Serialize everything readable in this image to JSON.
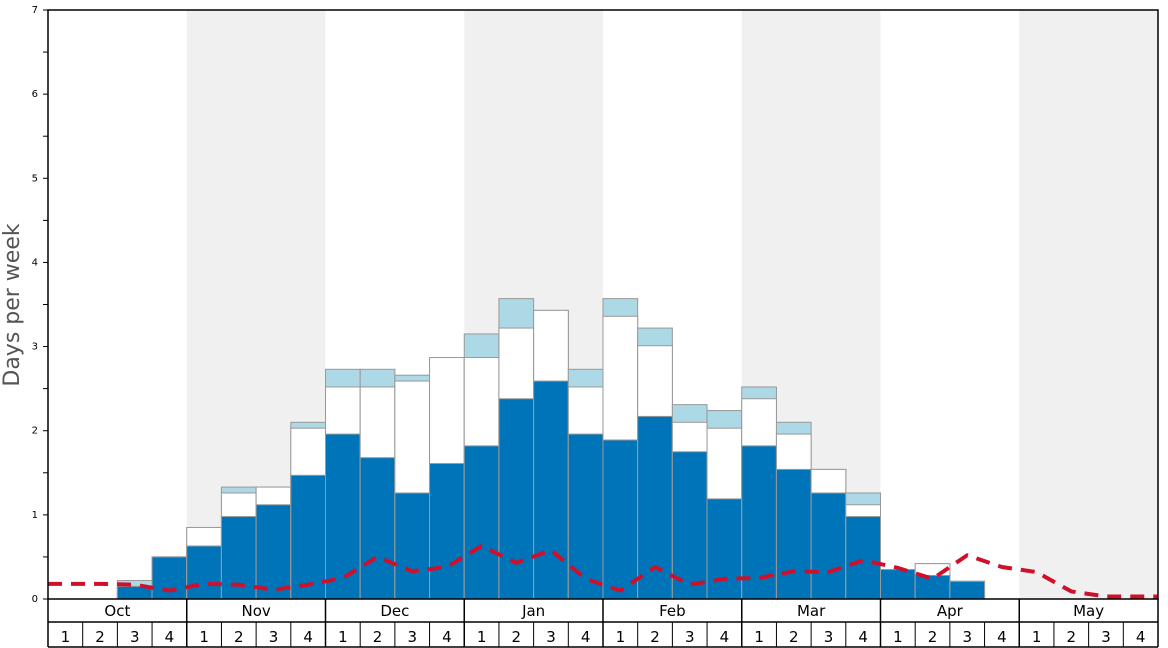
{
  "chart_data": {
    "type": "bar",
    "ylabel": "Days per week",
    "ylim": [
      0,
      7
    ],
    "yticks": [
      "0",
      "1",
      "2",
      "3",
      "4",
      "5",
      "6",
      "7"
    ],
    "months": [
      "Oct",
      "Nov",
      "Dec",
      "Jan",
      "Feb",
      "Mar",
      "Apr",
      "May"
    ],
    "weeks": [
      "1",
      "2",
      "3",
      "4"
    ],
    "shaded_months": [
      "Nov",
      "Jan",
      "Mar",
      "May"
    ],
    "colors": {
      "dark": "#0074b8",
      "mid": "#ffffff",
      "light": "#add8e6",
      "line": "#d0102a",
      "shade": "#f0f0f0"
    },
    "categories": [
      "Oct 1",
      "Oct 2",
      "Oct 3",
      "Oct 4",
      "Nov 1",
      "Nov 2",
      "Nov 3",
      "Nov 4",
      "Dec 1",
      "Dec 2",
      "Dec 3",
      "Dec 4",
      "Jan 1",
      "Jan 2",
      "Jan 3",
      "Jan 4",
      "Feb 1",
      "Feb 2",
      "Feb 3",
      "Feb 4",
      "Mar 1",
      "Mar 2",
      "Mar 3",
      "Mar 4",
      "Apr 1",
      "Apr 2",
      "Apr 3",
      "Apr 4",
      "May 1",
      "May 2",
      "May 3",
      "May 4"
    ],
    "series": [
      {
        "values": [
          0,
          0,
          0.15,
          0.5,
          0.63,
          0.98,
          1.12,
          1.47,
          1.96,
          1.68,
          1.26,
          1.61,
          1.82,
          2.38,
          2.59,
          1.96,
          1.89,
          2.17,
          1.75,
          1.19,
          1.82,
          1.54,
          1.26,
          0.98,
          0.35,
          0.28,
          0.21,
          0,
          0,
          0,
          0,
          0
        ]
      },
      {
        "values": [
          0,
          0,
          0.14,
          0.5,
          0.85,
          1.26,
          1.33,
          2.03,
          2.52,
          2.52,
          2.59,
          2.87,
          2.87,
          3.22,
          3.43,
          2.52,
          3.36,
          3.01,
          2.1,
          2.03,
          2.38,
          1.96,
          1.54,
          1.12,
          0.35,
          0.42,
          0.21,
          0,
          0,
          0,
          0,
          0
        ]
      },
      {
        "values": [
          0,
          0,
          0.22,
          0.5,
          0.85,
          1.33,
          1.33,
          2.1,
          2.73,
          2.73,
          2.66,
          2.87,
          3.15,
          3.57,
          3.43,
          2.73,
          3.57,
          3.22,
          2.31,
          2.24,
          2.52,
          2.1,
          1.54,
          1.26,
          0.35,
          0.42,
          0.21,
          0,
          0,
          0,
          0,
          0
        ]
      },
      {
        "values": [
          0.18,
          0.18,
          0.17,
          0.1,
          0.18,
          0.17,
          0.11,
          0.17,
          0.25,
          0.5,
          0.33,
          0.38,
          0.63,
          0.43,
          0.58,
          0.24,
          0.1,
          0.38,
          0.17,
          0.24,
          0.25,
          0.33,
          0.32,
          0.46,
          0.37,
          0.24,
          0.52,
          0.38,
          0.32,
          0.09,
          0.03,
          0.03
        ]
      }
    ]
  }
}
